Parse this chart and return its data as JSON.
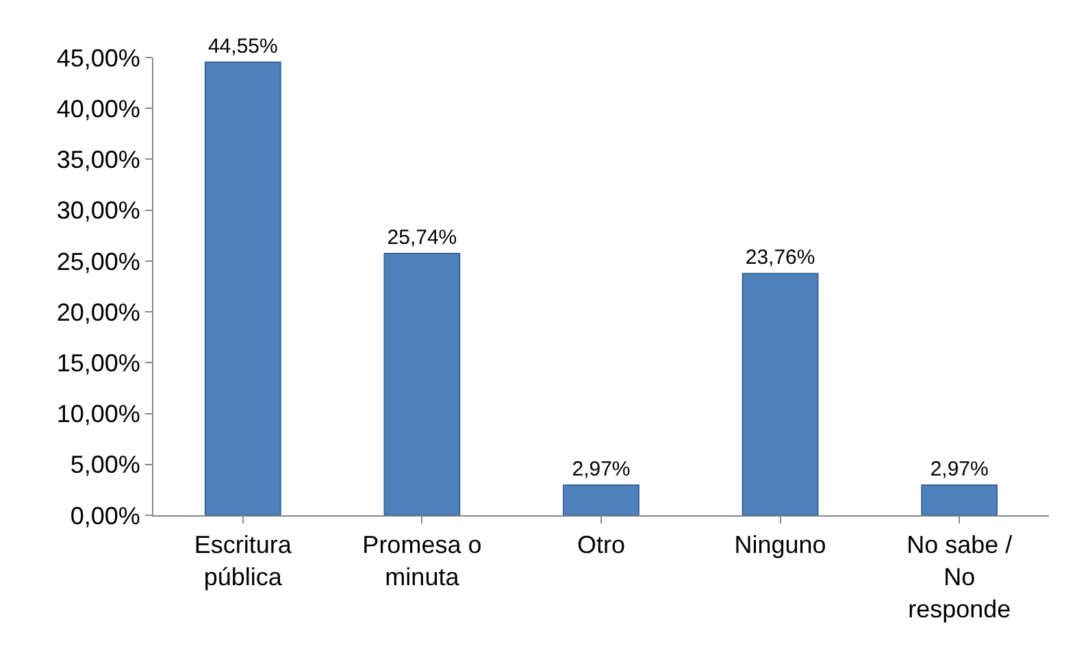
{
  "chart_data": {
    "type": "bar",
    "categories": [
      "Escritura pública",
      "Promesa o minuta",
      "Otro",
      "Ninguno",
      "No sabe / No responde"
    ],
    "values": [
      44.55,
      25.74,
      2.97,
      23.76,
      2.97
    ],
    "value_labels": [
      "44,55%",
      "25,74%",
      "2,97%",
      "23,76%",
      "2,97%"
    ],
    "color": "#4f81bd",
    "ylim": [
      0,
      45
    ],
    "yticks": [
      {
        "value": 0,
        "label": "0,00%"
      },
      {
        "value": 5,
        "label": "5,00%"
      },
      {
        "value": 10,
        "label": "10,00%"
      },
      {
        "value": 15,
        "label": "15,00%"
      },
      {
        "value": 20,
        "label": "20,00%"
      },
      {
        "value": 25,
        "label": "25,00%"
      },
      {
        "value": 30,
        "label": "30,00%"
      },
      {
        "value": 35,
        "label": "35,00%"
      },
      {
        "value": 40,
        "label": "40,00%"
      },
      {
        "value": 45,
        "label": "45,00%"
      }
    ],
    "grid": false
  }
}
